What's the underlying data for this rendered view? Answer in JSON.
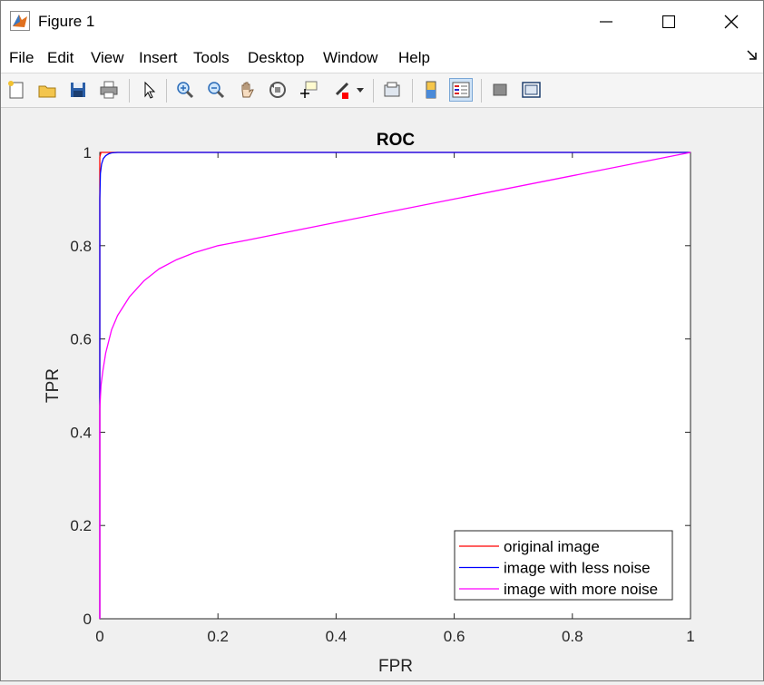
{
  "window": {
    "title": "Figure 1",
    "minimize_glyph": "—",
    "maximize_glyph": "☐",
    "close_glyph": "✕"
  },
  "menu": {
    "items": [
      "File",
      "Edit",
      "View",
      "Insert",
      "Tools",
      "Desktop",
      "Window",
      "Help"
    ]
  },
  "toolbar": {
    "buttons": [
      {
        "icon": "new-figure-icon"
      },
      {
        "icon": "open-file-icon"
      },
      {
        "icon": "save-icon"
      },
      {
        "icon": "print-icon"
      },
      {
        "icon": "pointer-icon"
      },
      {
        "icon": "zoom-in-icon"
      },
      {
        "icon": "zoom-out-icon"
      },
      {
        "icon": "pan-icon"
      },
      {
        "icon": "rotate-3d-icon"
      },
      {
        "icon": "data-cursor-icon"
      },
      {
        "icon": "brush-icon"
      },
      {
        "icon": "link-plot-icon"
      },
      {
        "icon": "insert-colorbar-icon"
      },
      {
        "icon": "insert-legend-icon"
      },
      {
        "icon": "hide-plot-tools-icon"
      },
      {
        "icon": "show-plot-tools-icon"
      }
    ]
  },
  "chart_data": {
    "type": "line",
    "title": "ROC",
    "xlabel": "FPR",
    "ylabel": "TPR",
    "xlim": [
      0,
      1
    ],
    "ylim": [
      0,
      1
    ],
    "xticks": [
      "0",
      "0.2",
      "0.4",
      "0.6",
      "0.8",
      "1"
    ],
    "yticks": [
      "0",
      "0.2",
      "0.4",
      "0.6",
      "0.8",
      "1"
    ],
    "legend_position": "bottom-right",
    "grid": false,
    "series": [
      {
        "name": "original image",
        "color": "#ff0000",
        "x": [
          0,
          0,
          0.002,
          0.01,
          1
        ],
        "y": [
          0,
          0.99,
          1,
          1,
          1
        ]
      },
      {
        "name": "image with less noise",
        "color": "#0000ff",
        "x": [
          0,
          0,
          0.001,
          0.003,
          0.006,
          0.01,
          0.015,
          0.02,
          0.03,
          1
        ],
        "y": [
          0,
          0.9,
          0.955,
          0.975,
          0.987,
          0.993,
          0.997,
          0.999,
          1,
          1
        ]
      },
      {
        "name": "image with more noise",
        "color": "#ff00ff",
        "x": [
          0,
          0,
          0.002,
          0.005,
          0.01,
          0.02,
          0.03,
          0.05,
          0.075,
          0.1,
          0.13,
          0.16,
          0.2,
          0.25,
          0.4,
          0.6,
          0.8,
          1
        ],
        "y": [
          0,
          0.45,
          0.5,
          0.53,
          0.57,
          0.62,
          0.65,
          0.69,
          0.725,
          0.75,
          0.77,
          0.785,
          0.8,
          0.812,
          0.85,
          0.9,
          0.95,
          1
        ]
      }
    ]
  }
}
